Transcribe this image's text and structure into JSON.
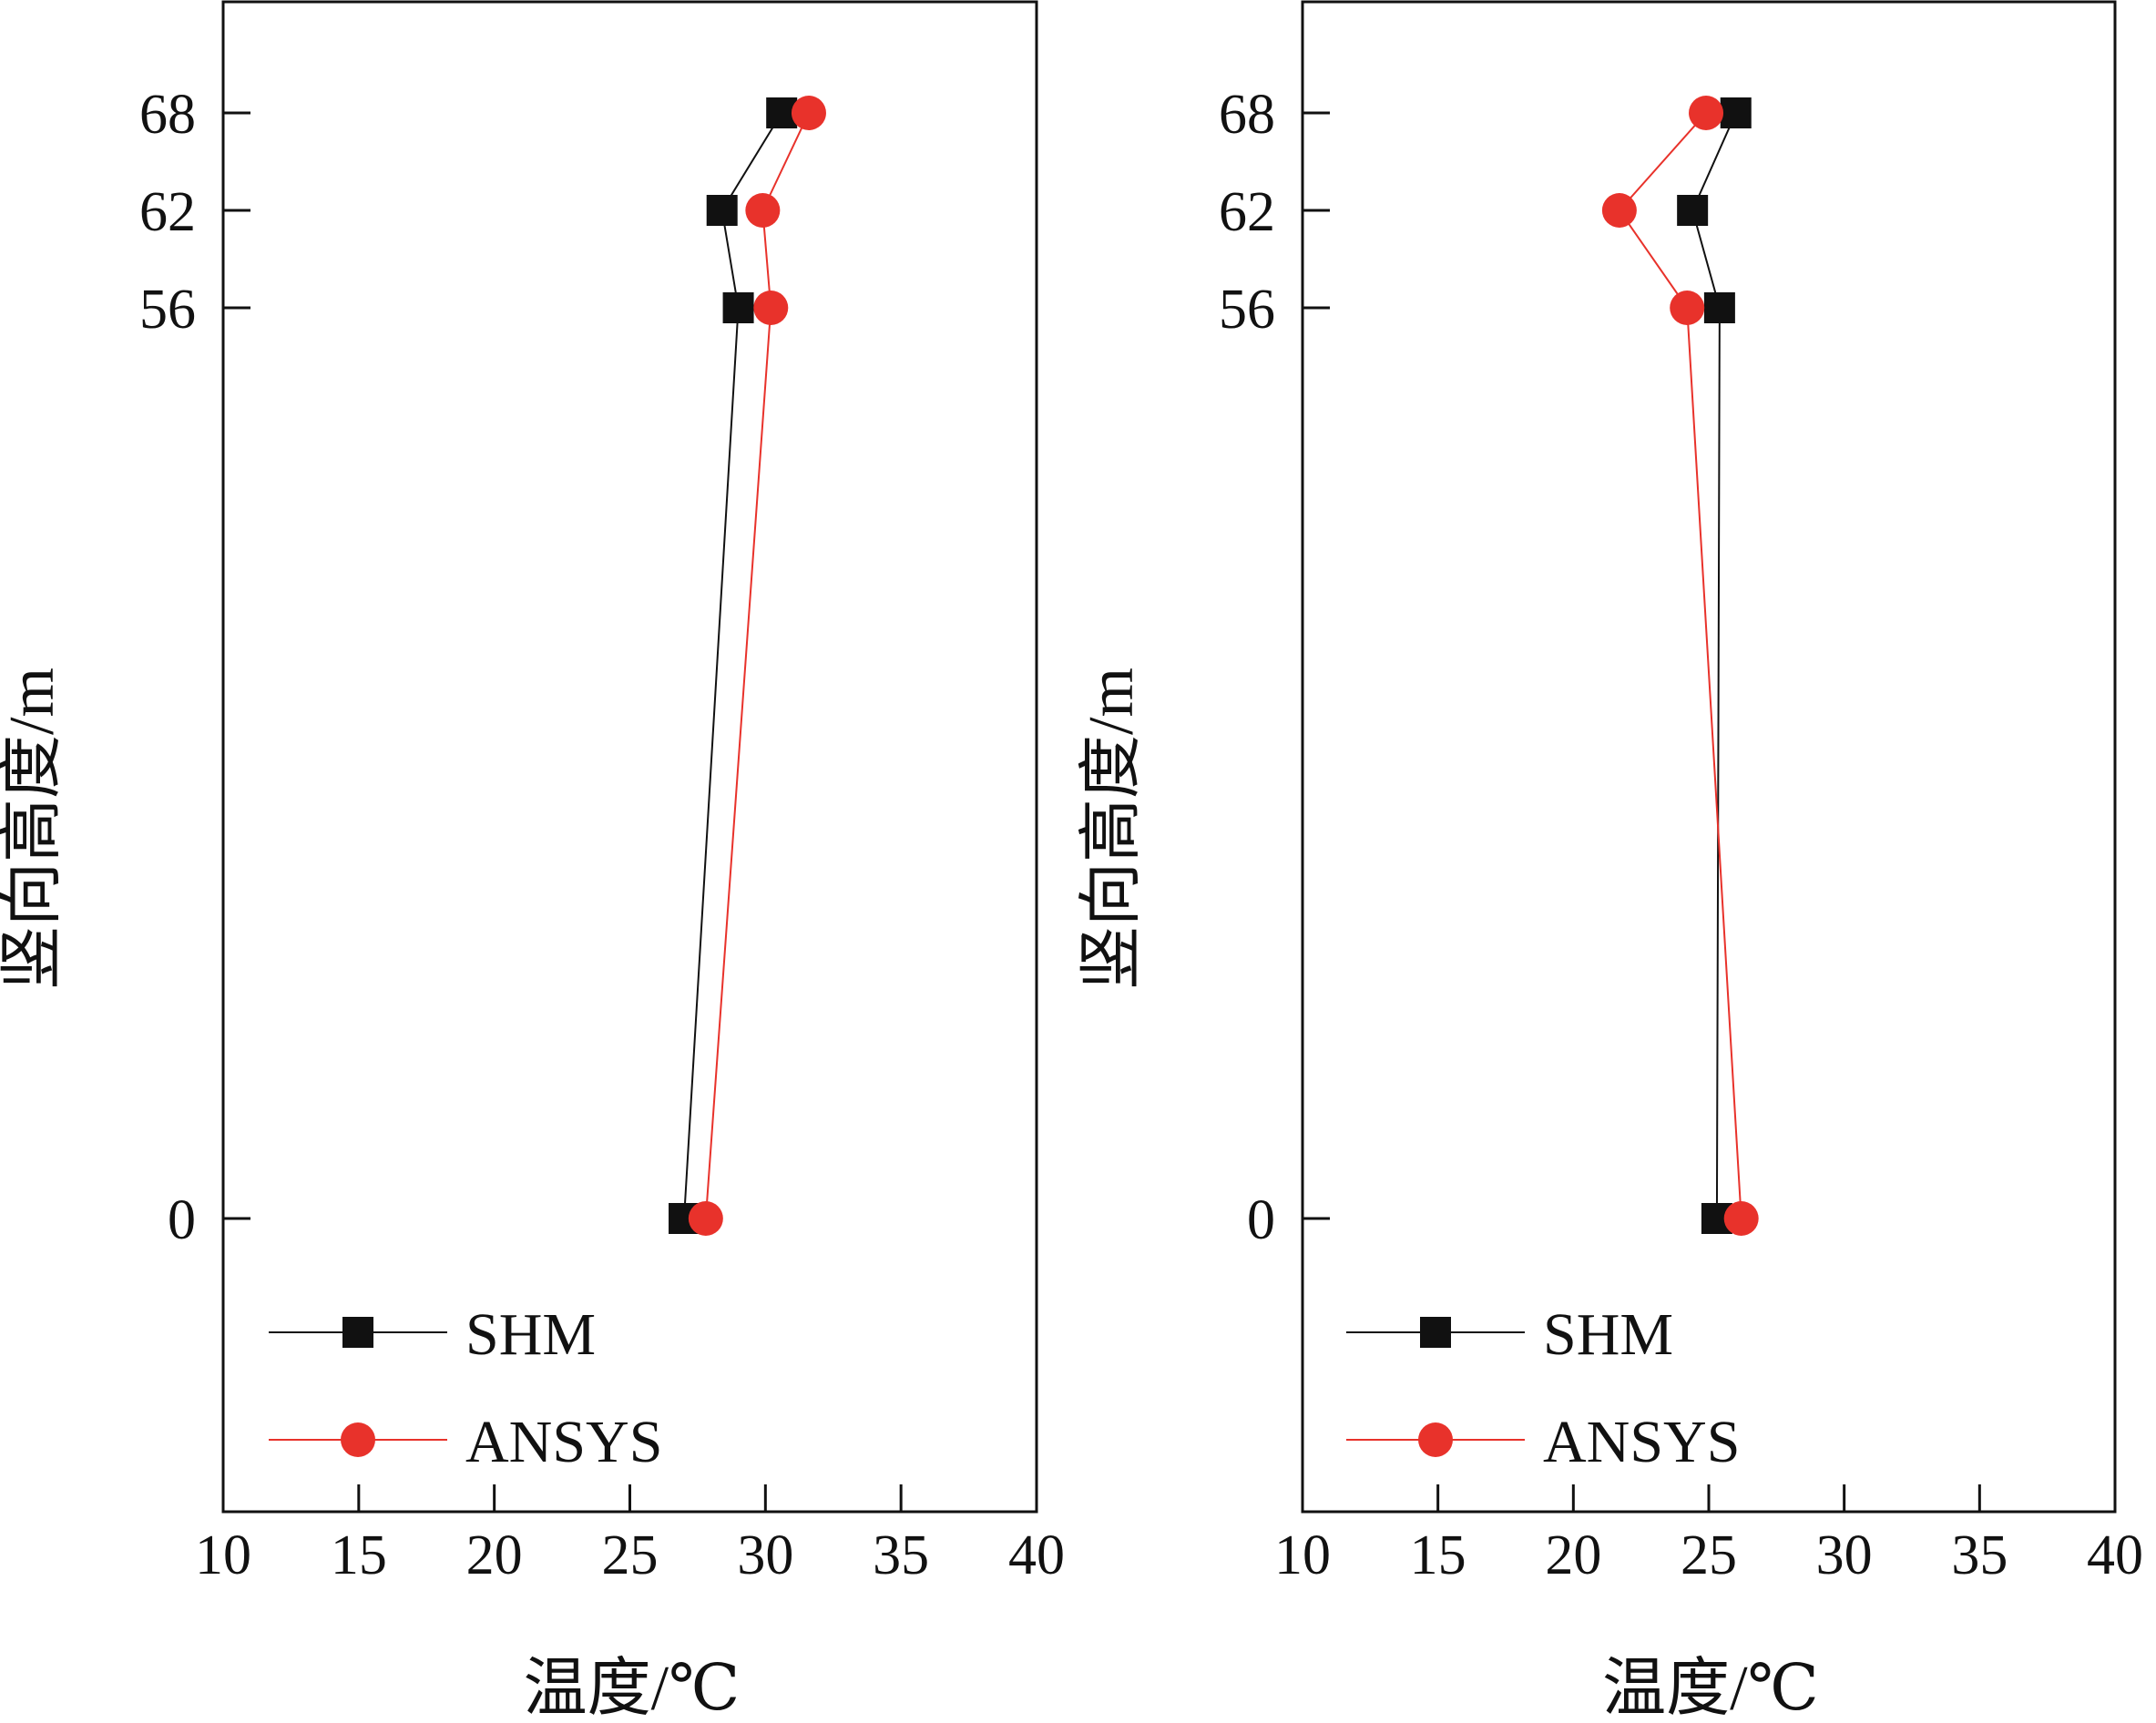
{
  "chart_data": [
    {
      "type": "line",
      "xlabel": "温度/℃",
      "ylabel": "竖向高度/m",
      "xlim": [
        10,
        40
      ],
      "xticks": [
        10,
        15,
        20,
        25,
        30,
        35,
        40
      ],
      "yticks": [
        0,
        56,
        62,
        68
      ],
      "grid": false,
      "legend_position": "bottom-left",
      "series": [
        {
          "name": "SHM",
          "color": "#111111",
          "marker": "square",
          "points": [
            {
              "x": 27.0,
              "y": 0
            },
            {
              "x": 29.0,
              "y": 56
            },
            {
              "x": 28.4,
              "y": 62
            },
            {
              "x": 30.6,
              "y": 68
            }
          ]
        },
        {
          "name": "ANSYS",
          "color": "#e8322b",
          "marker": "circle",
          "points": [
            {
              "x": 27.8,
              "y": 0
            },
            {
              "x": 30.2,
              "y": 56
            },
            {
              "x": 29.9,
              "y": 62
            },
            {
              "x": 31.6,
              "y": 68
            }
          ]
        }
      ]
    },
    {
      "type": "line",
      "xlabel": "温度/℃",
      "ylabel": "竖向高度/m",
      "xlim": [
        10,
        40
      ],
      "xticks": [
        10,
        15,
        20,
        25,
        30,
        35,
        40
      ],
      "yticks": [
        0,
        56,
        62,
        68
      ],
      "grid": false,
      "legend_position": "bottom-left",
      "series": [
        {
          "name": "SHM",
          "color": "#111111",
          "marker": "square",
          "points": [
            {
              "x": 25.3,
              "y": 0
            },
            {
              "x": 25.4,
              "y": 56
            },
            {
              "x": 24.4,
              "y": 62
            },
            {
              "x": 26.0,
              "y": 68
            }
          ]
        },
        {
          "name": "ANSYS",
          "color": "#e8322b",
          "marker": "circle",
          "points": [
            {
              "x": 26.2,
              "y": 0
            },
            {
              "x": 24.2,
              "y": 56
            },
            {
              "x": 21.7,
              "y": 62
            },
            {
              "x": 24.9,
              "y": 68
            }
          ]
        }
      ]
    }
  ]
}
